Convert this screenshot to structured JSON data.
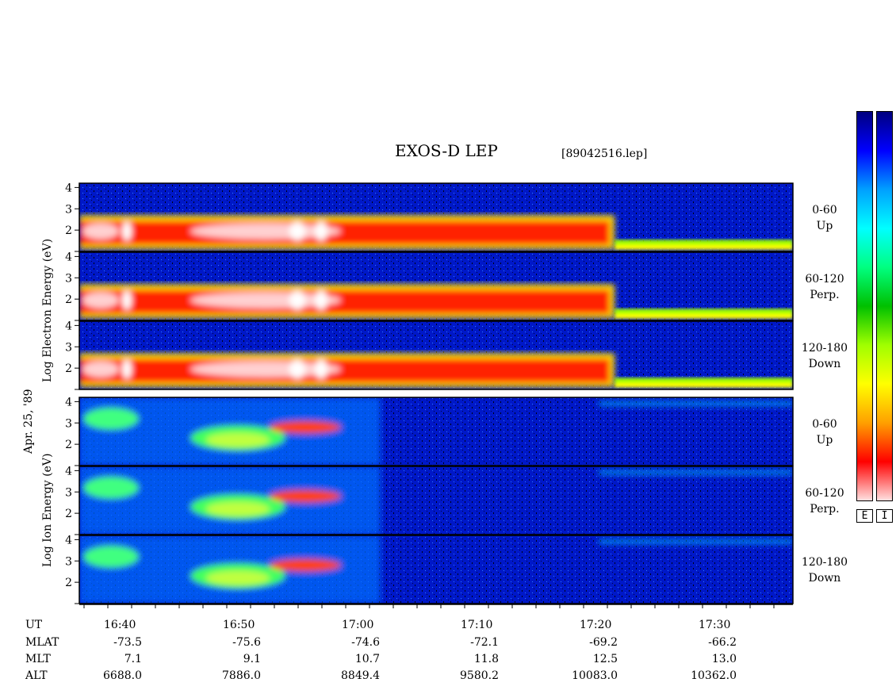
{
  "title": "EXOS-D LEP",
  "file_label": "[89042516.lep]",
  "date_label": "Apr. 25, '89",
  "electron_axis_label": "Log   Electron   Energy  (eV)",
  "ion_axis_label": "Log   Ion   Energy  (eV)",
  "panel_labels": [
    {
      "angle": "0-60",
      "direction": "Up"
    },
    {
      "angle": "60-120",
      "direction": "Perp."
    },
    {
      "angle": "120-180",
      "direction": "Down"
    },
    {
      "angle": "0-60",
      "direction": "Up"
    },
    {
      "angle": "60-120",
      "direction": "Perp."
    },
    {
      "angle": "120-180",
      "direction": "Down"
    }
  ],
  "colorbar_labels": [
    "E",
    "I"
  ],
  "colorbar_colors": [
    "#000080",
    "#0000ff",
    "#00a0ff",
    "#00ffff",
    "#00ff80",
    "#00c000",
    "#a0ff00",
    "#ffff00",
    "#ffa000",
    "#ff0000",
    "#ffe0e0"
  ],
  "ephemeris": {
    "row_labels": [
      "UT",
      "MLAT",
      "MLT",
      "ALT"
    ],
    "columns": [
      {
        "UT": "16:40",
        "MLAT": "-73.5",
        "MLT": "7.1",
        "ALT": "6688.0"
      },
      {
        "UT": "16:50",
        "MLAT": "-75.6",
        "MLT": "9.1",
        "ALT": "7886.0"
      },
      {
        "UT": "17:00",
        "MLAT": "-74.6",
        "MLT": "10.7",
        "ALT": "8849.4"
      },
      {
        "UT": "17:10",
        "MLAT": "-72.1",
        "MLT": "11.8",
        "ALT": "9580.2"
      },
      {
        "UT": "17:20",
        "MLAT": "-69.2",
        "MLT": "12.5",
        "ALT": "10083.0"
      },
      {
        "UT": "17:30",
        "MLAT": "-66.2",
        "MLT": "13.0",
        "ALT": "10362.0"
      }
    ]
  },
  "chart_data": {
    "type": "heatmap",
    "title": "EXOS-D LEP",
    "x_unit": "UT",
    "x_range_minutes": [
      16.6,
      76.6
    ],
    "x_ticks": [
      "16:40",
      "16:50",
      "17:00",
      "17:10",
      "17:20",
      "17:30"
    ],
    "y_range_log_eV": [
      1.0,
      4.2
    ],
    "y_ticks": [
      2,
      3,
      4
    ],
    "panels": [
      {
        "species": "electron",
        "pitch_angle": "0-60",
        "label": "Up"
      },
      {
        "species": "electron",
        "pitch_angle": "60-120",
        "label": "Perp."
      },
      {
        "species": "electron",
        "pitch_angle": "120-180",
        "label": "Down"
      },
      {
        "species": "ion",
        "pitch_angle": "0-60",
        "label": "Up"
      },
      {
        "species": "ion",
        "pitch_angle": "60-120",
        "label": "Perp."
      },
      {
        "species": "ion",
        "pitch_angle": "120-180",
        "label": "Down"
      }
    ]
  }
}
